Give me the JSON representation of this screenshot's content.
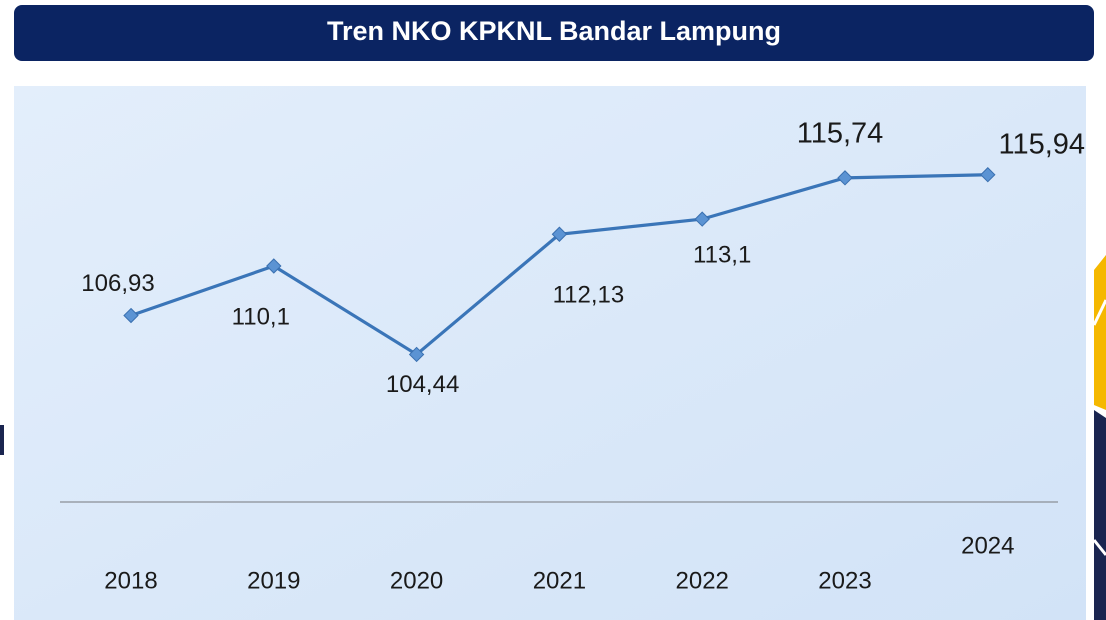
{
  "chart_data": {
    "type": "line",
    "title": "Tren NKO KPKNL Bandar Lampung",
    "categories": [
      "2018",
      "2019",
      "2020",
      "2021",
      "2022",
      "2023",
      "2024"
    ],
    "series": [
      {
        "name": "NKO",
        "color": "#3a75b8",
        "values": [
          106.93,
          110.1,
          104.44,
          112.13,
          113.1,
          115.74,
          115.94
        ],
        "value_labels": [
          "106,93",
          "110,1",
          "104,44",
          "112,13",
          "113,1",
          "115,74",
          "115,94"
        ]
      }
    ],
    "ylim": [
      95,
      122
    ]
  }
}
